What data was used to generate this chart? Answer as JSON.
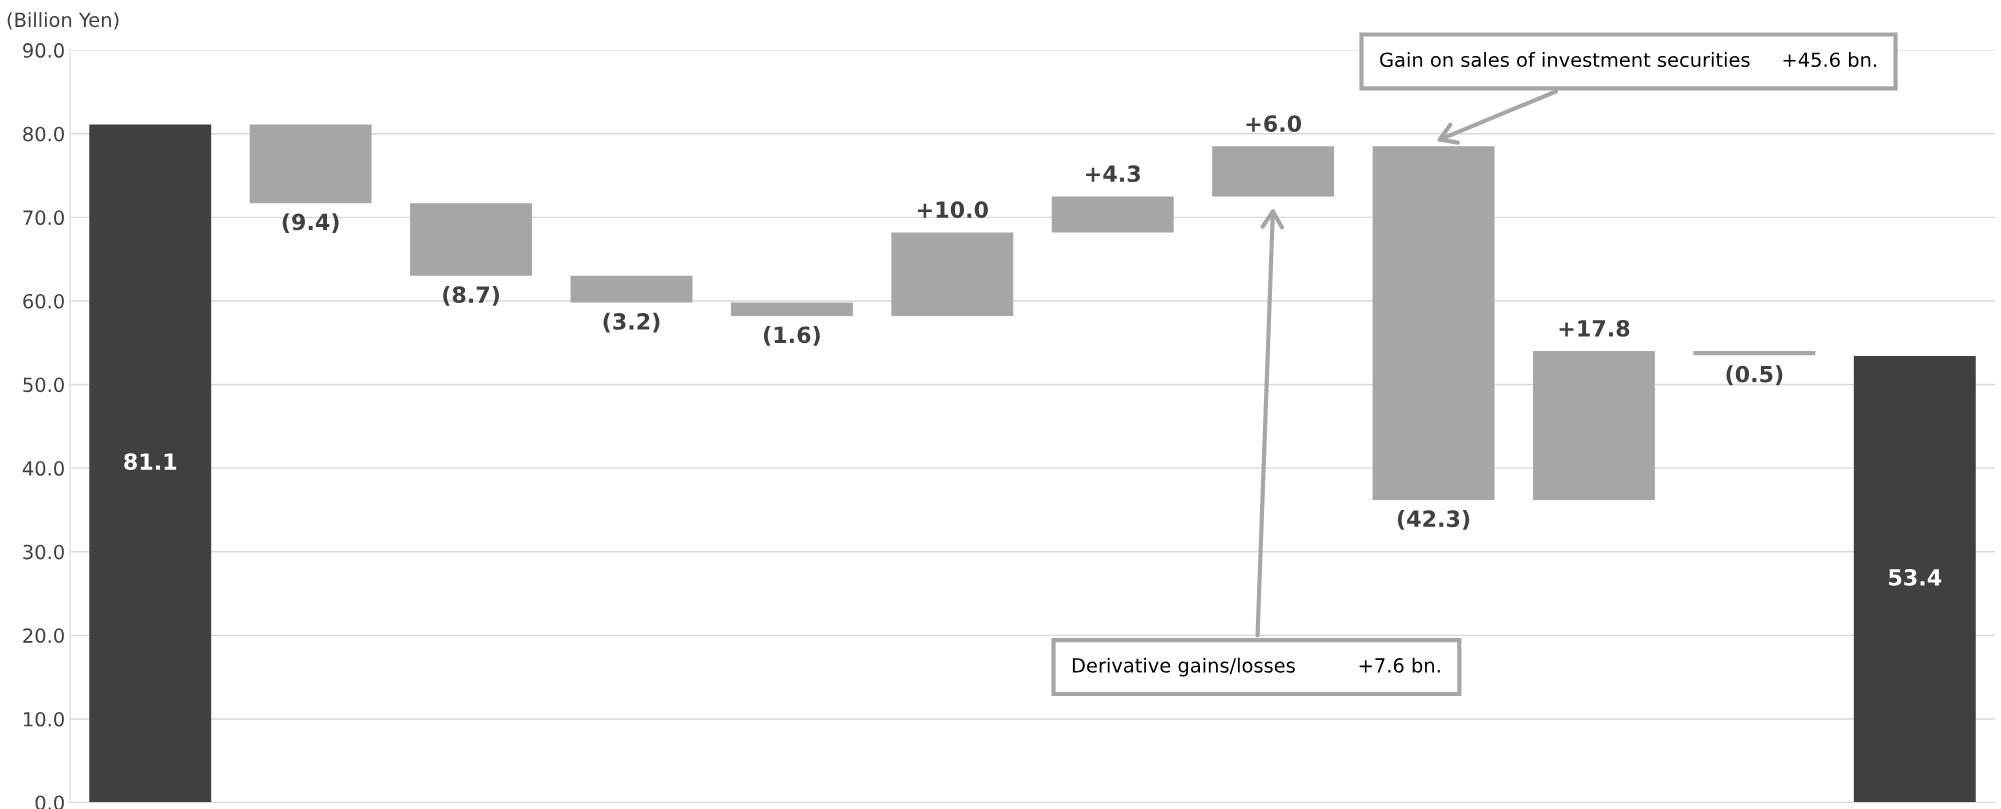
{
  "chart_data": {
    "type": "bar",
    "ylabel": "(Billion Yen)",
    "categories": [
      null,
      null,
      null,
      null,
      null,
      null,
      null,
      null,
      null,
      null,
      null,
      null
    ],
    "values": [
      81.1,
      -9.4,
      -8.7,
      -3.2,
      -1.6,
      10.0,
      4.3,
      6.0,
      -42.3,
      17.8,
      -0.5,
      53.4
    ],
    "base": [
      0,
      81.1,
      71.7,
      63.0,
      59.8,
      58.2,
      68.2,
      72.5,
      78.5,
      36.2,
      54.0,
      0
    ],
    "colors": [
      "#404040",
      "#a6a6a6",
      "#a6a6a6",
      "#a6a6a6",
      "#a6a6a6",
      "#a6a6a6",
      "#a6a6a6",
      "#a6a6a6",
      "#a6a6a6",
      "#a6a6a6",
      "#a6a6a6",
      "#404040"
    ],
    "value_labels": [
      "81.1",
      "(9.4)",
      "(8.7)",
      "(3.2)",
      "(1.6)",
      "+10.0",
      "+4.3",
      "+6.0",
      "(42.3)",
      "+17.8",
      "(0.5)",
      "53.4"
    ],
    "ylim": [
      0,
      90
    ],
    "yticks": [
      {
        "value": 0,
        "label": "0.0"
      },
      {
        "value": 10,
        "label": "10.0"
      },
      {
        "value": 20,
        "label": "20.0"
      },
      {
        "value": 30,
        "label": "30.0"
      },
      {
        "value": 40,
        "label": "40.0"
      },
      {
        "value": 50,
        "label": "50.0"
      },
      {
        "value": 60,
        "label": "60.0"
      },
      {
        "value": 70,
        "label": "70.0"
      },
      {
        "value": 80,
        "label": "80.0"
      },
      {
        "value": 90,
        "label": "90.0"
      }
    ],
    "grid": "y",
    "annotations": [
      "Gain on sales of investment securities     +45.6 bn.",
      "Derivative gains/losses          +7.6 bn."
    ]
  }
}
